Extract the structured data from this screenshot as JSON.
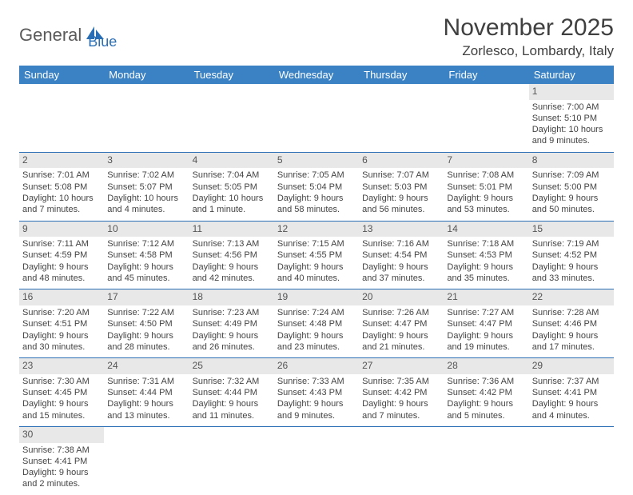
{
  "logo": {
    "word1": "General",
    "word2": "Blue"
  },
  "header": {
    "month_title": "November 2025",
    "location": "Zorlesco, Lombardy, Italy"
  },
  "colors": {
    "header_bg": "#3b82c4",
    "header_text": "#ffffff",
    "rule": "#2a6fb5",
    "daynum_bg": "#e8e8e8",
    "logo_gray": "#5a5a5a",
    "logo_blue": "#2a6fb5",
    "text": "#404040"
  },
  "calendar": {
    "day_headers": [
      "Sunday",
      "Monday",
      "Tuesday",
      "Wednesday",
      "Thursday",
      "Friday",
      "Saturday"
    ],
    "weeks": [
      [
        null,
        null,
        null,
        null,
        null,
        null,
        {
          "n": "1",
          "sunrise": "Sunrise: 7:00 AM",
          "sunset": "Sunset: 5:10 PM",
          "daylight1": "Daylight: 10 hours",
          "daylight2": "and 9 minutes."
        }
      ],
      [
        {
          "n": "2",
          "sunrise": "Sunrise: 7:01 AM",
          "sunset": "Sunset: 5:08 PM",
          "daylight1": "Daylight: 10 hours",
          "daylight2": "and 7 minutes."
        },
        {
          "n": "3",
          "sunrise": "Sunrise: 7:02 AM",
          "sunset": "Sunset: 5:07 PM",
          "daylight1": "Daylight: 10 hours",
          "daylight2": "and 4 minutes."
        },
        {
          "n": "4",
          "sunrise": "Sunrise: 7:04 AM",
          "sunset": "Sunset: 5:05 PM",
          "daylight1": "Daylight: 10 hours",
          "daylight2": "and 1 minute."
        },
        {
          "n": "5",
          "sunrise": "Sunrise: 7:05 AM",
          "sunset": "Sunset: 5:04 PM",
          "daylight1": "Daylight: 9 hours",
          "daylight2": "and 58 minutes."
        },
        {
          "n": "6",
          "sunrise": "Sunrise: 7:07 AM",
          "sunset": "Sunset: 5:03 PM",
          "daylight1": "Daylight: 9 hours",
          "daylight2": "and 56 minutes."
        },
        {
          "n": "7",
          "sunrise": "Sunrise: 7:08 AM",
          "sunset": "Sunset: 5:01 PM",
          "daylight1": "Daylight: 9 hours",
          "daylight2": "and 53 minutes."
        },
        {
          "n": "8",
          "sunrise": "Sunrise: 7:09 AM",
          "sunset": "Sunset: 5:00 PM",
          "daylight1": "Daylight: 9 hours",
          "daylight2": "and 50 minutes."
        }
      ],
      [
        {
          "n": "9",
          "sunrise": "Sunrise: 7:11 AM",
          "sunset": "Sunset: 4:59 PM",
          "daylight1": "Daylight: 9 hours",
          "daylight2": "and 48 minutes."
        },
        {
          "n": "10",
          "sunrise": "Sunrise: 7:12 AM",
          "sunset": "Sunset: 4:58 PM",
          "daylight1": "Daylight: 9 hours",
          "daylight2": "and 45 minutes."
        },
        {
          "n": "11",
          "sunrise": "Sunrise: 7:13 AM",
          "sunset": "Sunset: 4:56 PM",
          "daylight1": "Daylight: 9 hours",
          "daylight2": "and 42 minutes."
        },
        {
          "n": "12",
          "sunrise": "Sunrise: 7:15 AM",
          "sunset": "Sunset: 4:55 PM",
          "daylight1": "Daylight: 9 hours",
          "daylight2": "and 40 minutes."
        },
        {
          "n": "13",
          "sunrise": "Sunrise: 7:16 AM",
          "sunset": "Sunset: 4:54 PM",
          "daylight1": "Daylight: 9 hours",
          "daylight2": "and 37 minutes."
        },
        {
          "n": "14",
          "sunrise": "Sunrise: 7:18 AM",
          "sunset": "Sunset: 4:53 PM",
          "daylight1": "Daylight: 9 hours",
          "daylight2": "and 35 minutes."
        },
        {
          "n": "15",
          "sunrise": "Sunrise: 7:19 AM",
          "sunset": "Sunset: 4:52 PM",
          "daylight1": "Daylight: 9 hours",
          "daylight2": "and 33 minutes."
        }
      ],
      [
        {
          "n": "16",
          "sunrise": "Sunrise: 7:20 AM",
          "sunset": "Sunset: 4:51 PM",
          "daylight1": "Daylight: 9 hours",
          "daylight2": "and 30 minutes."
        },
        {
          "n": "17",
          "sunrise": "Sunrise: 7:22 AM",
          "sunset": "Sunset: 4:50 PM",
          "daylight1": "Daylight: 9 hours",
          "daylight2": "and 28 minutes."
        },
        {
          "n": "18",
          "sunrise": "Sunrise: 7:23 AM",
          "sunset": "Sunset: 4:49 PM",
          "daylight1": "Daylight: 9 hours",
          "daylight2": "and 26 minutes."
        },
        {
          "n": "19",
          "sunrise": "Sunrise: 7:24 AM",
          "sunset": "Sunset: 4:48 PM",
          "daylight1": "Daylight: 9 hours",
          "daylight2": "and 23 minutes."
        },
        {
          "n": "20",
          "sunrise": "Sunrise: 7:26 AM",
          "sunset": "Sunset: 4:47 PM",
          "daylight1": "Daylight: 9 hours",
          "daylight2": "and 21 minutes."
        },
        {
          "n": "21",
          "sunrise": "Sunrise: 7:27 AM",
          "sunset": "Sunset: 4:47 PM",
          "daylight1": "Daylight: 9 hours",
          "daylight2": "and 19 minutes."
        },
        {
          "n": "22",
          "sunrise": "Sunrise: 7:28 AM",
          "sunset": "Sunset: 4:46 PM",
          "daylight1": "Daylight: 9 hours",
          "daylight2": "and 17 minutes."
        }
      ],
      [
        {
          "n": "23",
          "sunrise": "Sunrise: 7:30 AM",
          "sunset": "Sunset: 4:45 PM",
          "daylight1": "Daylight: 9 hours",
          "daylight2": "and 15 minutes."
        },
        {
          "n": "24",
          "sunrise": "Sunrise: 7:31 AM",
          "sunset": "Sunset: 4:44 PM",
          "daylight1": "Daylight: 9 hours",
          "daylight2": "and 13 minutes."
        },
        {
          "n": "25",
          "sunrise": "Sunrise: 7:32 AM",
          "sunset": "Sunset: 4:44 PM",
          "daylight1": "Daylight: 9 hours",
          "daylight2": "and 11 minutes."
        },
        {
          "n": "26",
          "sunrise": "Sunrise: 7:33 AM",
          "sunset": "Sunset: 4:43 PM",
          "daylight1": "Daylight: 9 hours",
          "daylight2": "and 9 minutes."
        },
        {
          "n": "27",
          "sunrise": "Sunrise: 7:35 AM",
          "sunset": "Sunset: 4:42 PM",
          "daylight1": "Daylight: 9 hours",
          "daylight2": "and 7 minutes."
        },
        {
          "n": "28",
          "sunrise": "Sunrise: 7:36 AM",
          "sunset": "Sunset: 4:42 PM",
          "daylight1": "Daylight: 9 hours",
          "daylight2": "and 5 minutes."
        },
        {
          "n": "29",
          "sunrise": "Sunrise: 7:37 AM",
          "sunset": "Sunset: 4:41 PM",
          "daylight1": "Daylight: 9 hours",
          "daylight2": "and 4 minutes."
        }
      ],
      [
        {
          "n": "30",
          "sunrise": "Sunrise: 7:38 AM",
          "sunset": "Sunset: 4:41 PM",
          "daylight1": "Daylight: 9 hours",
          "daylight2": "and 2 minutes."
        },
        null,
        null,
        null,
        null,
        null,
        null
      ]
    ]
  }
}
